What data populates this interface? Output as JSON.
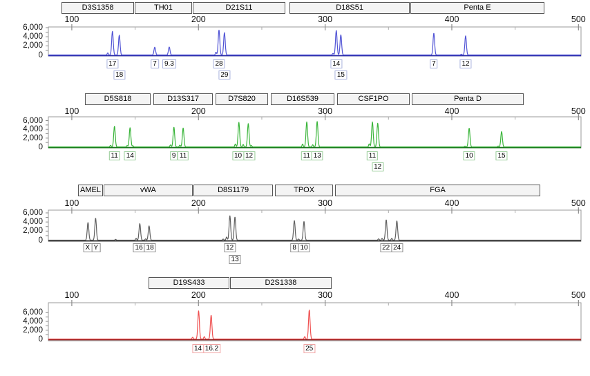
{
  "axis": {
    "x_ticks": [
      {
        "bp": 100,
        "label": "100"
      },
      {
        "bp": 200,
        "label": "200"
      },
      {
        "bp": 300,
        "label": "300"
      },
      {
        "bp": 400,
        "label": "400"
      },
      {
        "bp": 500,
        "label": "500"
      }
    ],
    "x_minor_ticks": [
      150,
      250,
      350,
      450
    ],
    "y_ticks": [
      {
        "value": 6000,
        "label": "6,000"
      },
      {
        "value": 4000,
        "label": "4,000"
      },
      {
        "value": 2000,
        "label": "2,000"
      },
      {
        "value": 0,
        "label": "0"
      }
    ],
    "x_range_bp": [
      81.5,
      502
    ],
    "ylim": [
      0,
      6000
    ],
    "grid": false
  },
  "chart_data": [
    {
      "type": "area",
      "subtype": "electropherogram-trace",
      "channel": "blue",
      "trace_color": "#5053d5",
      "baseline_color": "#2b2daa",
      "allele_box_border_color": "#a9b2dd",
      "markers": [
        {
          "name": "D3S1358",
          "bp": [
            91.9,
            149.1
          ]
        },
        {
          "name": "TH01",
          "bp": [
            149.7,
            194.9
          ]
        },
        {
          "name": "D21S11",
          "bp": [
            195.5,
            268.6
          ]
        },
        {
          "name": "D18S51",
          "bp": [
            271.9,
            366.8
          ]
        },
        {
          "name": "Penta E",
          "bp": [
            367.3,
            473.1
          ]
        }
      ],
      "peaks": [
        {
          "bp": 132.1,
          "rfu": 5200,
          "allele": "17",
          "row": 1
        },
        {
          "bp": 137.5,
          "rfu": 4350,
          "allele": "18",
          "row": 2
        },
        {
          "bp": 165.5,
          "rfu": 1700,
          "allele": "7",
          "row": 1
        },
        {
          "bp": 176.9,
          "rfu": 1750,
          "allele": "9.3",
          "row": 1
        },
        {
          "bp": 216.2,
          "rfu": 5500,
          "allele": "28",
          "row": 1
        },
        {
          "bp": 220.5,
          "rfu": 4900,
          "allele": "29",
          "row": 2
        },
        {
          "bp": 308.8,
          "rfu": 5400,
          "allele": "14",
          "row": 1
        },
        {
          "bp": 312.4,
          "rfu": 4450,
          "allele": "15",
          "row": 2
        },
        {
          "bp": 385.8,
          "rfu": 4800,
          "allele": "7",
          "row": 1
        },
        {
          "bp": 410.9,
          "rfu": 4200,
          "allele": "12",
          "row": 1
        }
      ],
      "minor_peaks": [
        {
          "bp": 128.4,
          "rfu": 450
        },
        {
          "bp": 213.8,
          "rfu": 600
        },
        {
          "bp": 306.2,
          "rfu": 350
        },
        {
          "bp": 407.5,
          "rfu": 160
        }
      ]
    },
    {
      "type": "area",
      "subtype": "electropherogram-trace",
      "channel": "green",
      "trace_color": "#3ab53a",
      "baseline_color": "#17741a",
      "allele_box_border_color": "#96cb96",
      "markers": [
        {
          "name": "D5S818",
          "bp": [
            110.4,
            162.2
          ]
        },
        {
          "name": "D13S317",
          "bp": [
            164.4,
            211.3
          ]
        },
        {
          "name": "D7S820",
          "bp": [
            213.5,
            255.0
          ]
        },
        {
          "name": "D16S539",
          "bp": [
            257.1,
            307.3
          ]
        },
        {
          "name": "CSF1PO",
          "bp": [
            309.5,
            366.8
          ]
        },
        {
          "name": "Penta D",
          "bp": [
            368.4,
            456.8
          ]
        }
      ],
      "peaks": [
        {
          "bp": 133.7,
          "rfu": 4700,
          "allele": "11",
          "row": 1
        },
        {
          "bp": 146.0,
          "rfu": 4400,
          "allele": "14",
          "row": 1
        },
        {
          "bp": 180.6,
          "rfu": 4500,
          "allele": "9",
          "row": 1
        },
        {
          "bp": 187.9,
          "rfu": 4300,
          "allele": "11",
          "row": 1
        },
        {
          "bp": 231.9,
          "rfu": 5600,
          "allele": "10",
          "row": 1
        },
        {
          "bp": 239.3,
          "rfu": 5300,
          "allele": "12",
          "row": 1
        },
        {
          "bp": 285.5,
          "rfu": 5700,
          "allele": "11",
          "row": 1
        },
        {
          "bp": 293.7,
          "rfu": 5800,
          "allele": "13",
          "row": 1
        },
        {
          "bp": 337.3,
          "rfu": 5700,
          "allele": "11",
          "row": 1
        },
        {
          "bp": 341.5,
          "rfu": 5400,
          "allele": "12",
          "row": 2
        },
        {
          "bp": 413.7,
          "rfu": 4250,
          "allele": "10",
          "row": 1
        },
        {
          "bp": 439.3,
          "rfu": 3500,
          "allele": "15",
          "row": 1
        }
      ],
      "minor_peaks": [
        {
          "bp": 130.6,
          "rfu": 350
        },
        {
          "bp": 143.7,
          "rfu": 300
        },
        {
          "bp": 148.2,
          "rfu": 250
        },
        {
          "bp": 177.9,
          "rfu": 450
        },
        {
          "bp": 185.3,
          "rfu": 400
        },
        {
          "bp": 229.1,
          "rfu": 650
        },
        {
          "bp": 235.3,
          "rfu": 550
        },
        {
          "bp": 241.8,
          "rfu": 300
        },
        {
          "bp": 282.2,
          "rfu": 650
        },
        {
          "bp": 290.2,
          "rfu": 500
        },
        {
          "bp": 334.8,
          "rfu": 700
        },
        {
          "bp": 410.4,
          "rfu": 180
        },
        {
          "bp": 436.6,
          "rfu": 200
        }
      ]
    },
    {
      "type": "area",
      "subtype": "electropherogram-trace",
      "channel": "black",
      "trace_color": "#5f5f5f",
      "baseline_color": "#262626",
      "allele_box_border_color": "#8c8c8c",
      "markers": [
        {
          "name": "AMEL",
          "bp": [
            105.0,
            124.6
          ]
        },
        {
          "name": "vWA",
          "bp": [
            125.1,
            195.5
          ]
        },
        {
          "name": "D8S1179",
          "bp": [
            196.1,
            258.8
          ]
        },
        {
          "name": "TPOX",
          "bp": [
            260.5,
            306.2
          ]
        },
        {
          "name": "FGA",
          "bp": [
            307.9,
            469.9
          ]
        }
      ],
      "peaks": [
        {
          "bp": 112.8,
          "rfu": 3900,
          "allele": "X",
          "row": 1
        },
        {
          "bp": 118.8,
          "rfu": 4850,
          "allele": "Y",
          "row": 1
        },
        {
          "bp": 153.7,
          "rfu": 3650,
          "allele": "16",
          "row": 1
        },
        {
          "bp": 161.0,
          "rfu": 3150,
          "allele": "18",
          "row": 1
        },
        {
          "bp": 224.8,
          "rfu": 5400,
          "allele": "12",
          "row": 1
        },
        {
          "bp": 228.8,
          "rfu": 5100,
          "allele": "13",
          "row": 2
        },
        {
          "bp": 275.7,
          "rfu": 4300,
          "allele": "8",
          "row": 1
        },
        {
          "bp": 283.3,
          "rfu": 4100,
          "allele": "10",
          "row": 1
        },
        {
          "bp": 348.2,
          "rfu": 4500,
          "allele": "22",
          "row": 1
        },
        {
          "bp": 356.6,
          "rfu": 4250,
          "allele": "24",
          "row": 1
        }
      ],
      "minor_peaks": [
        {
          "bp": 134.6,
          "rfu": 180
        },
        {
          "bp": 150.8,
          "rfu": 400
        },
        {
          "bp": 158.3,
          "rfu": 300
        },
        {
          "bp": 219.5,
          "rfu": 250
        },
        {
          "bp": 222.2,
          "rfu": 700
        },
        {
          "bp": 279.0,
          "rfu": 250
        },
        {
          "bp": 342.2,
          "rfu": 300
        },
        {
          "bp": 344.9,
          "rfu": 400
        },
        {
          "bp": 352.6,
          "rfu": 400
        }
      ]
    },
    {
      "type": "area",
      "subtype": "electropherogram-trace",
      "channel": "red",
      "trace_color": "#ef5050",
      "baseline_color": "#8a1d1d",
      "allele_box_border_color": "#f0a3a3",
      "markers": [
        {
          "name": "D19S433",
          "bp": [
            160.6,
            224.4
          ]
        },
        {
          "name": "D2S1338",
          "bp": [
            224.9,
            305.1
          ]
        }
      ],
      "peaks": [
        {
          "bp": 200.1,
          "rfu": 6400,
          "allele": "14",
          "row": 1
        },
        {
          "bp": 210.0,
          "rfu": 5400,
          "allele": "16.2",
          "row": 1
        },
        {
          "bp": 287.5,
          "rfu": 6600,
          "allele": "25",
          "row": 1
        }
      ],
      "minor_peaks": [
        {
          "bp": 195.4,
          "rfu": 400
        },
        {
          "bp": 204.6,
          "rfu": 550
        },
        {
          "bp": 283.9,
          "rfu": 550
        }
      ]
    }
  ]
}
